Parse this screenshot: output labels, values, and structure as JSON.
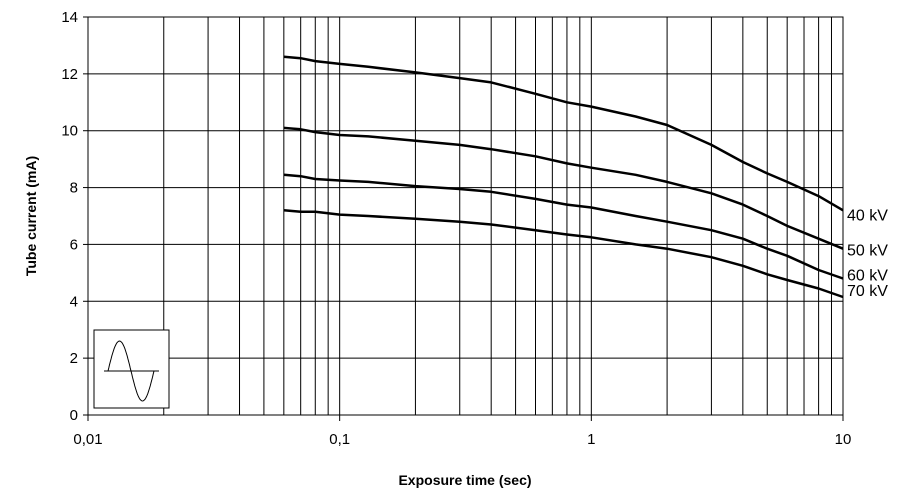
{
  "chart_data": {
    "type": "line",
    "xlabel": "Exposure time (sec)",
    "ylabel": "Tube current (mA)",
    "xscale": "log",
    "xlim": [
      0.01,
      10
    ],
    "ylim": [
      0,
      14
    ],
    "y_ticks": [
      0,
      2,
      4,
      6,
      8,
      10,
      12,
      14
    ],
    "y_tick_labels": [
      "0",
      "2",
      "4",
      "6",
      "8",
      "10",
      "12",
      "14"
    ],
    "x_ticks": [
      0.01,
      0.1,
      1,
      10
    ],
    "x_tick_labels": [
      "0,01",
      "0,1",
      "1",
      "10"
    ],
    "grid": true,
    "legend": "none",
    "colors": {
      "line": "#000000",
      "grid": "#000000",
      "background": "#ffffff"
    },
    "inset_icon": "sine-wave-icon",
    "series": [
      {
        "name": "40 kV",
        "x": [
          0.06,
          0.07,
          0.08,
          0.1,
          0.13,
          0.2,
          0.3,
          0.4,
          0.6,
          0.8,
          1,
          1.5,
          2,
          3,
          4,
          5,
          6,
          8,
          10
        ],
        "y": [
          12.6,
          12.55,
          12.45,
          12.35,
          12.25,
          12.05,
          11.85,
          11.7,
          11.3,
          11.0,
          10.85,
          10.5,
          10.2,
          9.5,
          8.9,
          8.5,
          8.2,
          7.7,
          7.2
        ]
      },
      {
        "name": "50 kV",
        "x": [
          0.06,
          0.07,
          0.08,
          0.1,
          0.13,
          0.2,
          0.3,
          0.4,
          0.6,
          0.8,
          1,
          1.5,
          2,
          3,
          4,
          5,
          6,
          8,
          10
        ],
        "y": [
          10.1,
          10.05,
          9.95,
          9.85,
          9.8,
          9.65,
          9.5,
          9.35,
          9.1,
          8.85,
          8.7,
          8.45,
          8.2,
          7.8,
          7.4,
          7.0,
          6.65,
          6.2,
          5.85
        ]
      },
      {
        "name": "60 kV",
        "x": [
          0.06,
          0.07,
          0.08,
          0.1,
          0.13,
          0.2,
          0.3,
          0.4,
          0.6,
          0.8,
          1,
          1.5,
          2,
          3,
          4,
          5,
          6,
          8,
          10
        ],
        "y": [
          8.45,
          8.4,
          8.3,
          8.25,
          8.2,
          8.05,
          7.95,
          7.85,
          7.6,
          7.4,
          7.3,
          7.0,
          6.8,
          6.5,
          6.2,
          5.85,
          5.6,
          5.1,
          4.8
        ]
      },
      {
        "name": "70 kV",
        "x": [
          0.06,
          0.07,
          0.08,
          0.1,
          0.13,
          0.2,
          0.3,
          0.4,
          0.6,
          0.8,
          1,
          1.5,
          2,
          3,
          4,
          5,
          6,
          8,
          10
        ],
        "y": [
          7.2,
          7.15,
          7.15,
          7.05,
          7.0,
          6.9,
          6.8,
          6.7,
          6.5,
          6.35,
          6.25,
          6.0,
          5.85,
          5.55,
          5.25,
          4.95,
          4.75,
          4.45,
          4.15
        ]
      }
    ]
  }
}
